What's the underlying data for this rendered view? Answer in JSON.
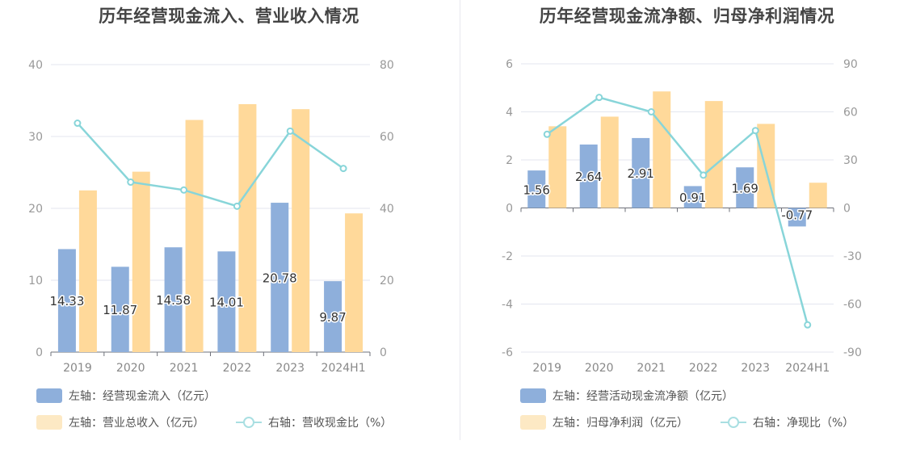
{
  "colors": {
    "bar_blue": "#8eafdb",
    "bar_orange": "#ffd99a",
    "line_teal": "#88d5d9",
    "legend_orange": "#fde9c4",
    "legend_teal": "#a9dfe2"
  },
  "chart_data": [
    {
      "type": "bar+line",
      "title": "历年经营现金流入、营业收入情况",
      "categories": [
        "2019",
        "2020",
        "2021",
        "2022",
        "2023",
        "2024H1"
      ],
      "left_axis": {
        "ticks": [
          "0",
          "10",
          "20",
          "30",
          "40"
        ],
        "ylim": [
          0,
          40
        ]
      },
      "right_axis": {
        "ticks": [
          "0",
          "20",
          "40",
          "60",
          "80"
        ],
        "ylim": [
          0,
          80
        ]
      },
      "series": [
        {
          "name": "左轴：经营现金流入（亿元）",
          "type": "bar",
          "axis": "left",
          "values": [
            14.33,
            11.87,
            14.58,
            14.01,
            20.78,
            9.87
          ],
          "labels": [
            "14.33",
            "11.87",
            "14.58",
            "14.01",
            "20.78",
            "9.87"
          ]
        },
        {
          "name": "左轴：营业总收入（亿元）",
          "type": "bar",
          "axis": "left",
          "values": [
            22.5,
            25.1,
            32.3,
            34.5,
            33.8,
            19.3
          ]
        },
        {
          "name": "右轴：营收现金比（%）",
          "type": "line",
          "axis": "right",
          "values": [
            63.7,
            47.3,
            45.1,
            40.6,
            61.5,
            51.1
          ]
        }
      ],
      "grid": true,
      "legend_position": "bottom-left"
    },
    {
      "type": "bar+line",
      "title": "历年经营现金流净额、归母净利润情况",
      "categories": [
        "2019",
        "2020",
        "2021",
        "2022",
        "2023",
        "2024H1"
      ],
      "left_axis": {
        "ticks": [
          "-6",
          "-4",
          "-2",
          "0",
          "2",
          "4",
          "6"
        ],
        "ylim": [
          -6,
          6
        ]
      },
      "right_axis": {
        "ticks": [
          "-90",
          "-60",
          "-30",
          "0",
          "30",
          "60",
          "90"
        ],
        "ylim": [
          -90,
          90
        ]
      },
      "series": [
        {
          "name": "左轴：经营活动现金流净额（亿元）",
          "type": "bar",
          "axis": "left",
          "values": [
            1.56,
            2.64,
            2.91,
            0.91,
            1.69,
            -0.77
          ],
          "labels": [
            "1.56",
            "2.64",
            "2.91",
            "0.91",
            "1.69",
            "-0.77"
          ]
        },
        {
          "name": "左轴：归母净利润（亿元）",
          "type": "bar",
          "axis": "left",
          "values": [
            3.4,
            3.8,
            4.85,
            4.45,
            3.5,
            1.05
          ]
        },
        {
          "name": "右轴：净现比（%）",
          "type": "line",
          "axis": "right",
          "values": [
            46,
            69,
            60,
            20.5,
            48.3,
            -73
          ]
        }
      ],
      "grid": true,
      "legend_position": "bottom-left"
    }
  ]
}
